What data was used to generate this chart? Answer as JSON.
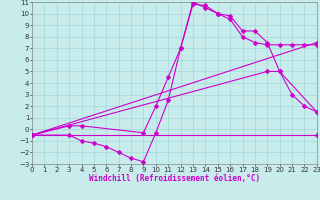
{
  "xlabel": "Windchill (Refroidissement éolien,°C)",
  "bg_color": "#c8ecec",
  "line_color": "#cc00cc",
  "grid_color": "#a0d8d8",
  "xmin": 0,
  "xmax": 23,
  "ymin": -3,
  "ymax": 11,
  "lines": [
    {
      "x": [
        0,
        3,
        4,
        5,
        6,
        7,
        8,
        9,
        10,
        11,
        12,
        13,
        14,
        15,
        16,
        17,
        18,
        19,
        20,
        21,
        22,
        23
      ],
      "y": [
        -0.5,
        -0.5,
        -1.0,
        -1.2,
        -1.5,
        -2.0,
        -2.5,
        -2.8,
        -0.3,
        2.5,
        7.0,
        11.0,
        10.5,
        10.0,
        9.8,
        8.5,
        8.5,
        7.5,
        5.0,
        3.0,
        2.0,
        1.5
      ],
      "marker": "D",
      "markersize": 2.5,
      "lw": 0.8
    },
    {
      "x": [
        0,
        3,
        4,
        9,
        10,
        11,
        12,
        13,
        14,
        15,
        16,
        17,
        18,
        19,
        20,
        21,
        22,
        23
      ],
      "y": [
        -0.5,
        0.3,
        0.3,
        -0.3,
        2.0,
        4.5,
        7.0,
        10.8,
        10.7,
        10.0,
        9.5,
        8.0,
        7.5,
        7.3,
        7.3,
        7.3,
        7.3,
        7.3
      ],
      "marker": "D",
      "markersize": 2.5,
      "lw": 0.8
    },
    {
      "x": [
        0,
        23
      ],
      "y": [
        -0.5,
        -0.5
      ],
      "marker": "D",
      "markersize": 2.5,
      "lw": 0.8
    },
    {
      "x": [
        0,
        23
      ],
      "y": [
        -0.5,
        7.5
      ],
      "marker": "D",
      "markersize": 2.5,
      "lw": 0.8
    },
    {
      "x": [
        0,
        19,
        20,
        23
      ],
      "y": [
        -0.5,
        5.0,
        5.0,
        1.5
      ],
      "marker": "D",
      "markersize": 2.5,
      "lw": 0.8
    }
  ],
  "xticks": [
    0,
    1,
    2,
    3,
    4,
    5,
    6,
    7,
    8,
    9,
    10,
    11,
    12,
    13,
    14,
    15,
    16,
    17,
    18,
    19,
    20,
    21,
    22,
    23
  ],
  "yticks": [
    -3,
    -2,
    -1,
    0,
    1,
    2,
    3,
    4,
    5,
    6,
    7,
    8,
    9,
    10,
    11
  ],
  "tick_fontsize": 5,
  "xlabel_fontsize": 5.5
}
